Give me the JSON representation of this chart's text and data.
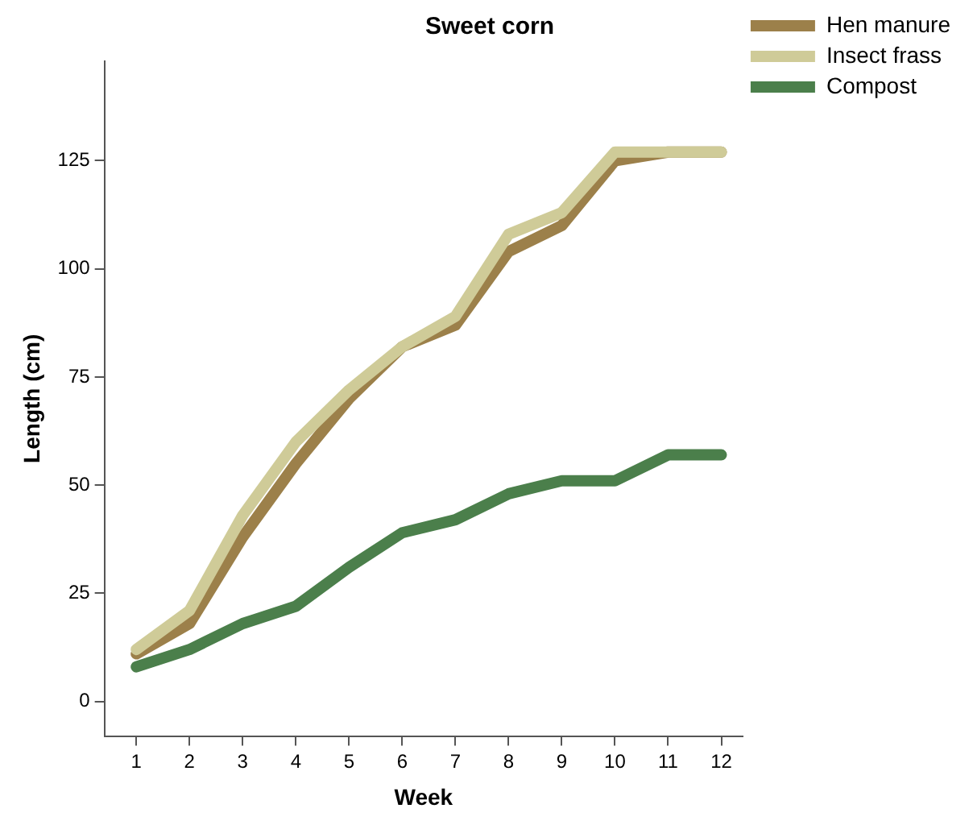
{
  "chart_data": {
    "type": "line",
    "title": "Sweet corn",
    "xlabel": "Week",
    "ylabel": "Length (cm)",
    "x": [
      1,
      2,
      3,
      4,
      5,
      6,
      7,
      8,
      9,
      10,
      11,
      12
    ],
    "xlim": [
      0.4,
      12.4
    ],
    "xticks": [
      1,
      2,
      3,
      4,
      5,
      6,
      7,
      8,
      9,
      10,
      11,
      12
    ],
    "ylim": [
      -8,
      148
    ],
    "yticks": [
      0,
      25,
      50,
      75,
      100,
      125
    ],
    "grid": false,
    "legend": "top right",
    "marker": "none",
    "line_style": "solid",
    "series": [
      {
        "name": "Hen manure",
        "color": "#9c804a",
        "values": [
          11,
          18,
          38,
          55,
          70,
          82,
          87,
          104,
          110,
          125,
          127,
          127
        ]
      },
      {
        "name": "Insect frass",
        "color": "#cfcb98",
        "values": [
          12,
          21,
          43,
          60,
          72,
          82,
          89,
          108,
          113,
          127,
          127,
          127
        ]
      },
      {
        "name": "Compost",
        "color": "#4b7f4b",
        "values": [
          8,
          12,
          18,
          22,
          31,
          39,
          42,
          48,
          51,
          51,
          57,
          57
        ]
      }
    ]
  }
}
